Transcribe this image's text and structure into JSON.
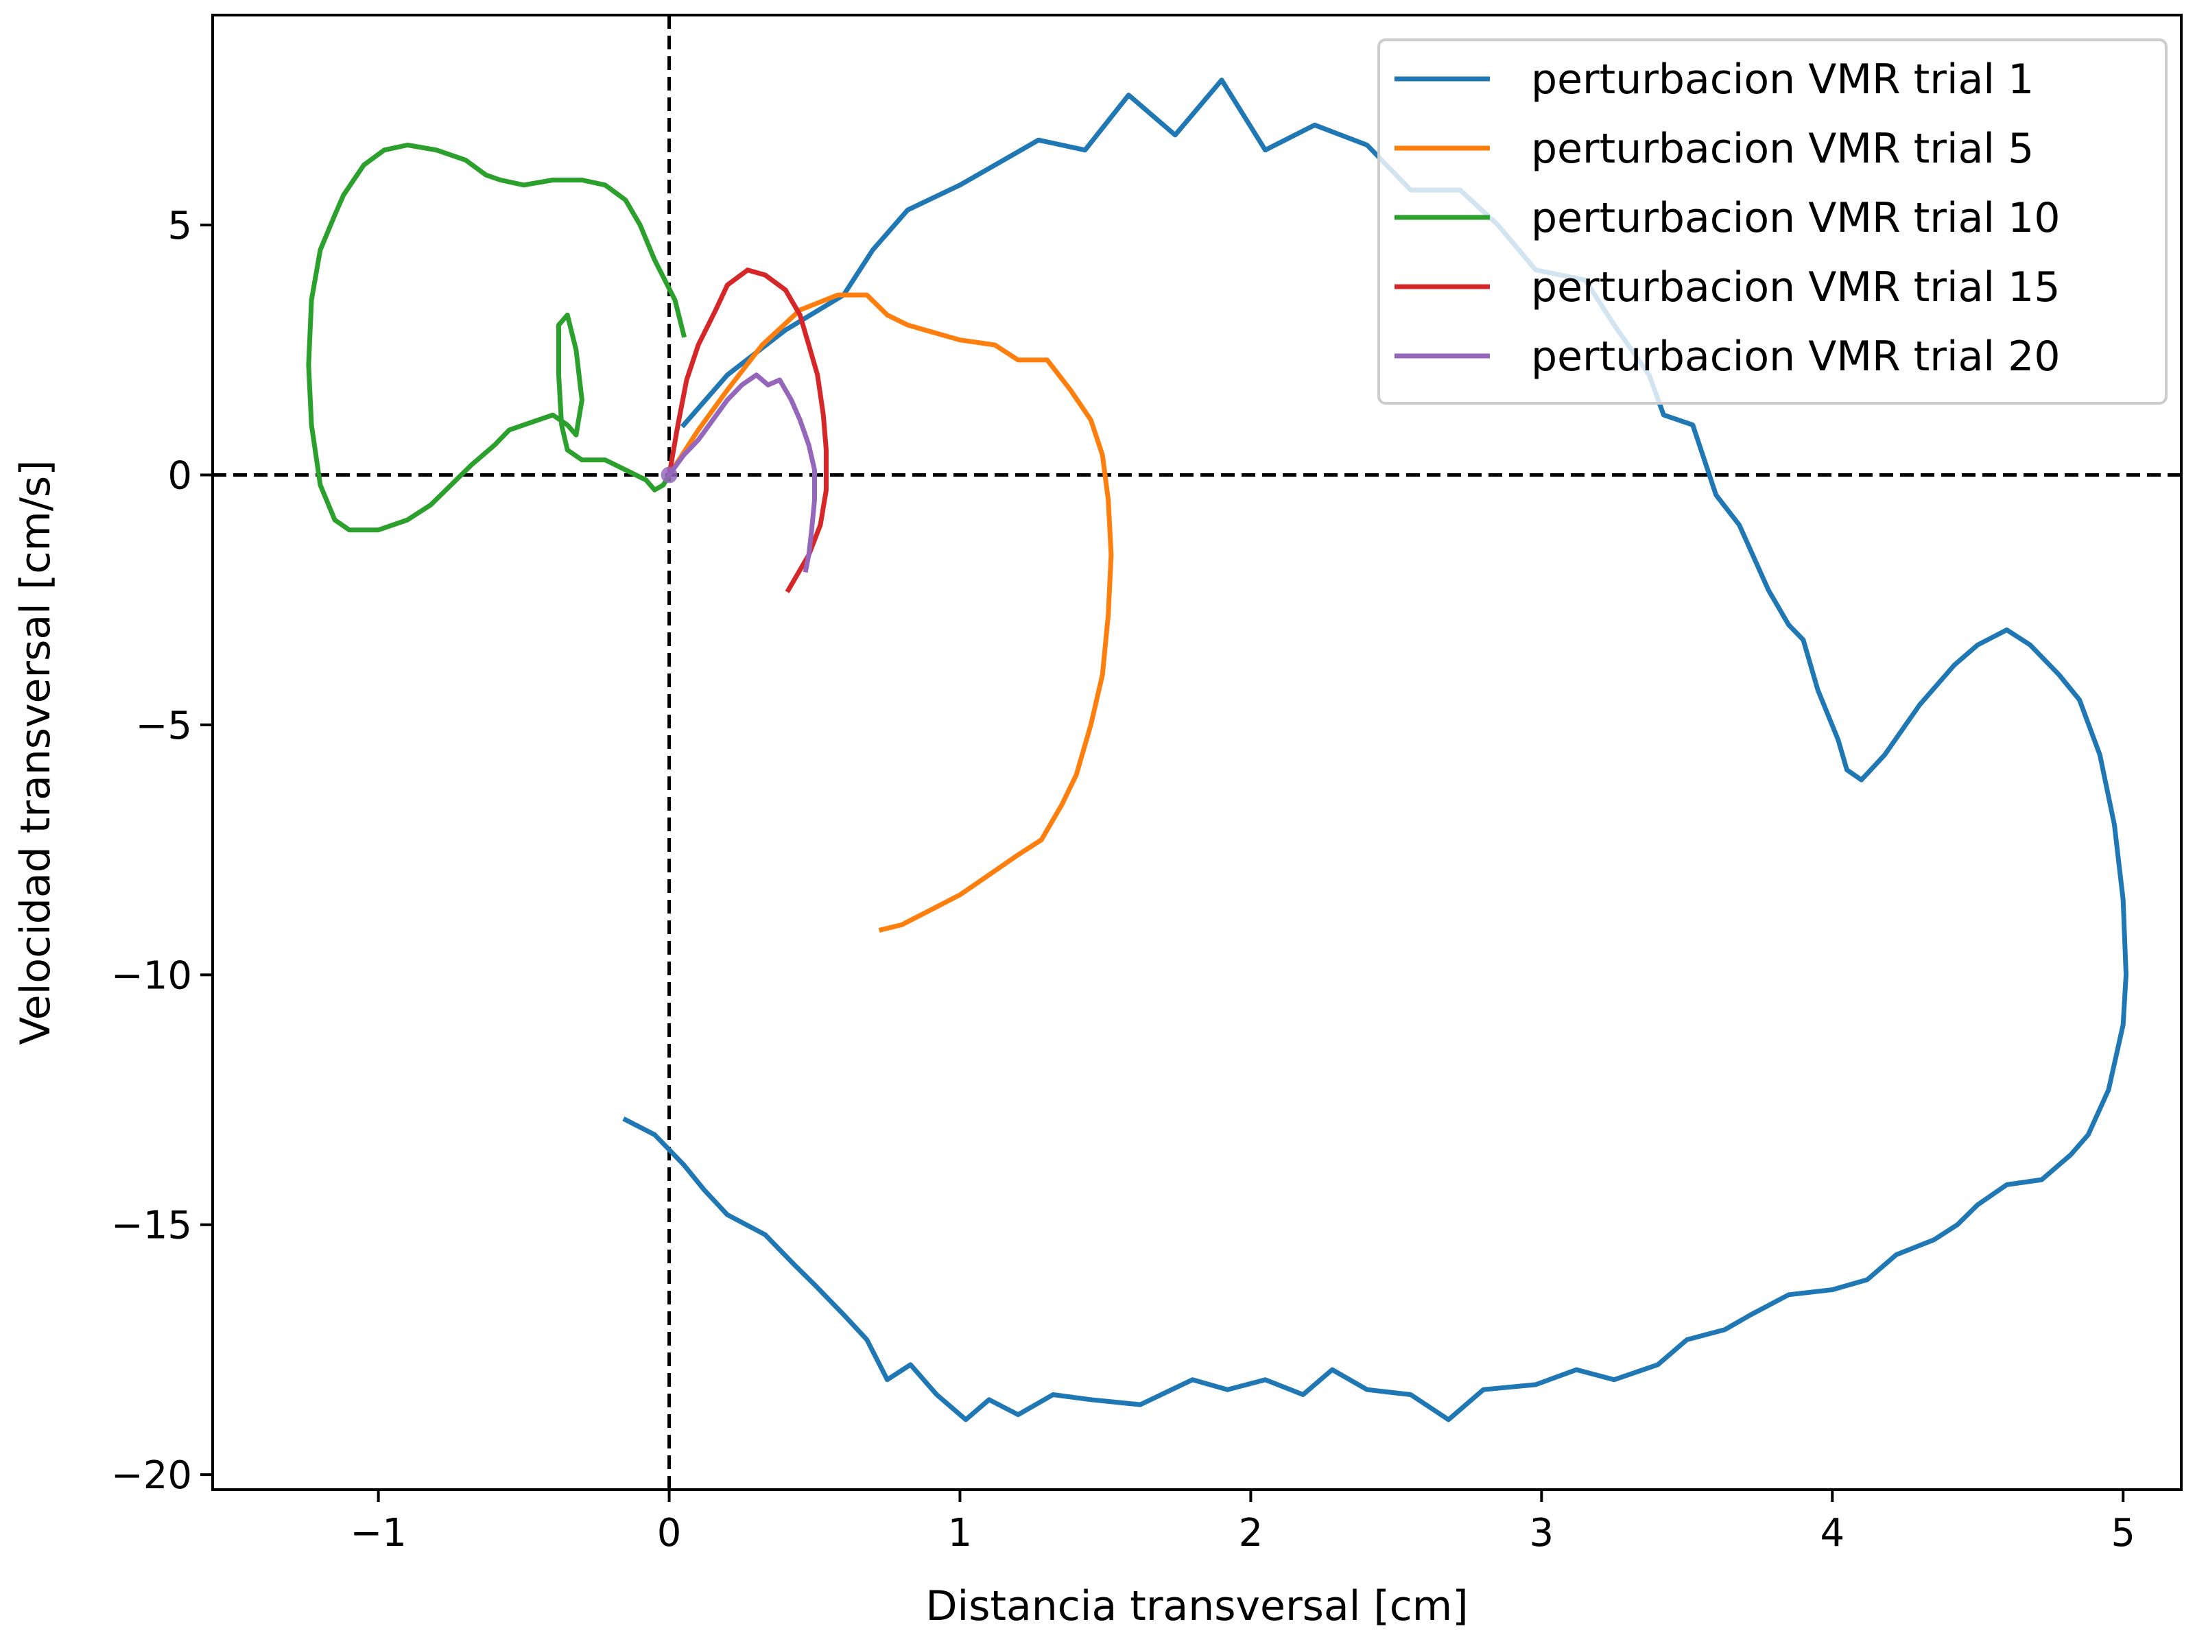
{
  "chart_data": {
    "type": "line",
    "title": "",
    "xlabel": "Distancia transversal [cm]",
    "ylabel": "Velocidad transversal [cm/s]",
    "xlim": [
      -1.57,
      5.2
    ],
    "ylim": [
      -20.3,
      9.2
    ],
    "xticks": [
      {
        "value": -1,
        "label": "−1"
      },
      {
        "value": 0,
        "label": "0"
      },
      {
        "value": 1,
        "label": "1"
      },
      {
        "value": 2,
        "label": "2"
      },
      {
        "value": 3,
        "label": "3"
      },
      {
        "value": 4,
        "label": "4"
      },
      {
        "value": 5,
        "label": "5"
      }
    ],
    "yticks": [
      {
        "value": 5,
        "label": "5"
      },
      {
        "value": 0,
        "label": "0"
      },
      {
        "value": -5,
        "label": "−5"
      },
      {
        "value": -10,
        "label": "−10"
      },
      {
        "value": -15,
        "label": "−15"
      },
      {
        "value": -20,
        "label": "−20"
      }
    ],
    "reference_lines": [
      {
        "axis": "x",
        "value": 0,
        "style": "dashed",
        "color": "#000000"
      },
      {
        "axis": "y",
        "value": 0,
        "style": "dashed",
        "color": "#000000"
      }
    ],
    "grid": false,
    "legend_position": "top-right",
    "series": [
      {
        "name": "perturbacion VMR trial 1",
        "color": "#1f77b4",
        "points": [
          [
            0.05,
            1.0
          ],
          [
            0.2,
            2.0
          ],
          [
            0.4,
            2.9
          ],
          [
            0.6,
            3.6
          ],
          [
            0.7,
            4.5
          ],
          [
            0.82,
            5.3
          ],
          [
            1.0,
            5.8
          ],
          [
            1.15,
            6.3
          ],
          [
            1.27,
            6.7
          ],
          [
            1.43,
            6.5
          ],
          [
            1.58,
            7.6
          ],
          [
            1.74,
            6.8
          ],
          [
            1.9,
            7.9
          ],
          [
            2.05,
            6.5
          ],
          [
            2.22,
            7.0
          ],
          [
            2.4,
            6.6
          ],
          [
            2.55,
            5.7
          ],
          [
            2.72,
            5.7
          ],
          [
            2.85,
            5.0
          ],
          [
            2.98,
            4.1
          ],
          [
            3.15,
            3.9
          ],
          [
            3.25,
            3.0
          ],
          [
            3.37,
            2.0
          ],
          [
            3.42,
            1.2
          ],
          [
            3.52,
            1.0
          ],
          [
            3.6,
            -0.4
          ],
          [
            3.68,
            -1.0
          ],
          [
            3.78,
            -2.3
          ],
          [
            3.85,
            -3.0
          ],
          [
            3.9,
            -3.3
          ],
          [
            3.95,
            -4.3
          ],
          [
            4.02,
            -5.3
          ],
          [
            4.05,
            -5.9
          ],
          [
            4.1,
            -6.1
          ],
          [
            4.18,
            -5.6
          ],
          [
            4.3,
            -4.6
          ],
          [
            4.42,
            -3.8
          ],
          [
            4.5,
            -3.4
          ],
          [
            4.6,
            -3.1
          ],
          [
            4.68,
            -3.4
          ],
          [
            4.78,
            -4.0
          ],
          [
            4.85,
            -4.5
          ],
          [
            4.92,
            -5.6
          ],
          [
            4.97,
            -7.0
          ],
          [
            5.0,
            -8.5
          ],
          [
            5.01,
            -10.0
          ],
          [
            5.0,
            -11.0
          ],
          [
            4.95,
            -12.3
          ],
          [
            4.88,
            -13.2
          ],
          [
            4.82,
            -13.6
          ],
          [
            4.72,
            -14.1
          ],
          [
            4.6,
            -14.2
          ],
          [
            4.5,
            -14.6
          ],
          [
            4.43,
            -15.0
          ],
          [
            4.35,
            -15.3
          ],
          [
            4.22,
            -15.6
          ],
          [
            4.12,
            -16.1
          ],
          [
            4.0,
            -16.3
          ],
          [
            3.85,
            -16.4
          ],
          [
            3.72,
            -16.8
          ],
          [
            3.63,
            -17.1
          ],
          [
            3.5,
            -17.3
          ],
          [
            3.4,
            -17.8
          ],
          [
            3.25,
            -18.1
          ],
          [
            3.12,
            -17.9
          ],
          [
            2.98,
            -18.2
          ],
          [
            2.8,
            -18.3
          ],
          [
            2.68,
            -18.9
          ],
          [
            2.55,
            -18.4
          ],
          [
            2.4,
            -18.3
          ],
          [
            2.28,
            -17.9
          ],
          [
            2.18,
            -18.4
          ],
          [
            2.05,
            -18.1
          ],
          [
            1.92,
            -18.3
          ],
          [
            1.8,
            -18.1
          ],
          [
            1.62,
            -18.6
          ],
          [
            1.45,
            -18.5
          ],
          [
            1.32,
            -18.4
          ],
          [
            1.2,
            -18.8
          ],
          [
            1.1,
            -18.5
          ],
          [
            1.02,
            -18.9
          ],
          [
            0.92,
            -18.4
          ],
          [
            0.83,
            -17.8
          ],
          [
            0.75,
            -18.1
          ],
          [
            0.68,
            -17.3
          ],
          [
            0.6,
            -16.8
          ],
          [
            0.5,
            -16.2
          ],
          [
            0.43,
            -15.8
          ],
          [
            0.33,
            -15.2
          ],
          [
            0.2,
            -14.8
          ],
          [
            0.12,
            -14.3
          ],
          [
            0.05,
            -13.8
          ],
          [
            -0.05,
            -13.2
          ],
          [
            -0.15,
            -12.9
          ]
        ]
      },
      {
        "name": "perturbacion VMR trial 5",
        "color": "#ff7f0e",
        "points": [
          [
            0.0,
            0.0
          ],
          [
            0.1,
            0.9
          ],
          [
            0.2,
            1.7
          ],
          [
            0.32,
            2.6
          ],
          [
            0.45,
            3.3
          ],
          [
            0.58,
            3.6
          ],
          [
            0.68,
            3.6
          ],
          [
            0.75,
            3.2
          ],
          [
            0.82,
            3.0
          ],
          [
            0.88,
            2.9
          ],
          [
            1.0,
            2.7
          ],
          [
            1.12,
            2.6
          ],
          [
            1.2,
            2.3
          ],
          [
            1.3,
            2.3
          ],
          [
            1.38,
            1.7
          ],
          [
            1.45,
            1.1
          ],
          [
            1.49,
            0.4
          ],
          [
            1.51,
            -0.5
          ],
          [
            1.52,
            -1.6
          ],
          [
            1.51,
            -2.8
          ],
          [
            1.49,
            -4.0
          ],
          [
            1.45,
            -5.0
          ],
          [
            1.4,
            -6.0
          ],
          [
            1.35,
            -6.6
          ],
          [
            1.28,
            -7.3
          ],
          [
            1.2,
            -7.6
          ],
          [
            1.1,
            -8.0
          ],
          [
            1.0,
            -8.4
          ],
          [
            0.9,
            -8.7
          ],
          [
            0.8,
            -9.0
          ],
          [
            0.73,
            -9.1
          ]
        ]
      },
      {
        "name": "perturbacion VMR trial 10",
        "color": "#2ca02c",
        "points": [
          [
            0.05,
            2.8
          ],
          [
            0.02,
            3.5
          ],
          [
            -0.05,
            4.3
          ],
          [
            -0.1,
            5.0
          ],
          [
            -0.15,
            5.5
          ],
          [
            -0.22,
            5.8
          ],
          [
            -0.3,
            5.9
          ],
          [
            -0.4,
            5.9
          ],
          [
            -0.5,
            5.8
          ],
          [
            -0.58,
            5.9
          ],
          [
            -0.63,
            6.0
          ],
          [
            -0.7,
            6.3
          ],
          [
            -0.8,
            6.5
          ],
          [
            -0.9,
            6.6
          ],
          [
            -0.98,
            6.5
          ],
          [
            -1.05,
            6.2
          ],
          [
            -1.12,
            5.6
          ],
          [
            -1.15,
            5.2
          ],
          [
            -1.2,
            4.5
          ],
          [
            -1.23,
            3.5
          ],
          [
            -1.24,
            2.2
          ],
          [
            -1.23,
            1.0
          ],
          [
            -1.2,
            -0.2
          ],
          [
            -1.15,
            -0.9
          ],
          [
            -1.1,
            -1.1
          ],
          [
            -1.0,
            -1.1
          ],
          [
            -0.9,
            -0.9
          ],
          [
            -0.82,
            -0.6
          ],
          [
            -0.75,
            -0.2
          ],
          [
            -0.68,
            0.2
          ],
          [
            -0.6,
            0.6
          ],
          [
            -0.55,
            0.9
          ],
          [
            -0.5,
            1.0
          ],
          [
            -0.45,
            1.1
          ],
          [
            -0.4,
            1.2
          ],
          [
            -0.35,
            1.0
          ],
          [
            -0.32,
            0.8
          ],
          [
            -0.3,
            1.5
          ],
          [
            -0.32,
            2.5
          ],
          [
            -0.35,
            3.2
          ],
          [
            -0.38,
            3.0
          ],
          [
            -0.38,
            2.0
          ],
          [
            -0.37,
            1.0
          ],
          [
            -0.35,
            0.5
          ],
          [
            -0.3,
            0.3
          ],
          [
            -0.22,
            0.3
          ],
          [
            -0.15,
            0.1
          ],
          [
            -0.08,
            -0.1
          ],
          [
            -0.05,
            -0.3
          ],
          [
            -0.02,
            -0.2
          ],
          [
            0.0,
            0.0
          ]
        ]
      },
      {
        "name": "perturbacion VMR trial 15",
        "color": "#d62728",
        "points": [
          [
            0.0,
            0.0
          ],
          [
            0.03,
            1.0
          ],
          [
            0.06,
            1.9
          ],
          [
            0.1,
            2.6
          ],
          [
            0.16,
            3.3
          ],
          [
            0.2,
            3.8
          ],
          [
            0.27,
            4.1
          ],
          [
            0.33,
            4.0
          ],
          [
            0.4,
            3.7
          ],
          [
            0.45,
            3.2
          ],
          [
            0.48,
            2.6
          ],
          [
            0.51,
            2.0
          ],
          [
            0.53,
            1.2
          ],
          [
            0.54,
            0.5
          ],
          [
            0.54,
            -0.3
          ],
          [
            0.52,
            -1.0
          ],
          [
            0.48,
            -1.6
          ],
          [
            0.44,
            -2.0
          ],
          [
            0.41,
            -2.3
          ]
        ]
      },
      {
        "name": "perturbacion VMR trial 20",
        "color": "#9467bd",
        "points": [
          [
            0.0,
            0.0
          ],
          [
            0.05,
            0.4
          ],
          [
            0.1,
            0.7
          ],
          [
            0.15,
            1.1
          ],
          [
            0.2,
            1.5
          ],
          [
            0.25,
            1.8
          ],
          [
            0.3,
            2.0
          ],
          [
            0.34,
            1.8
          ],
          [
            0.38,
            1.9
          ],
          [
            0.42,
            1.5
          ],
          [
            0.45,
            1.1
          ],
          [
            0.48,
            0.6
          ],
          [
            0.5,
            0.1
          ],
          [
            0.5,
            -0.5
          ],
          [
            0.49,
            -1.1
          ],
          [
            0.48,
            -1.6
          ],
          [
            0.47,
            -1.9
          ]
        ]
      }
    ]
  }
}
